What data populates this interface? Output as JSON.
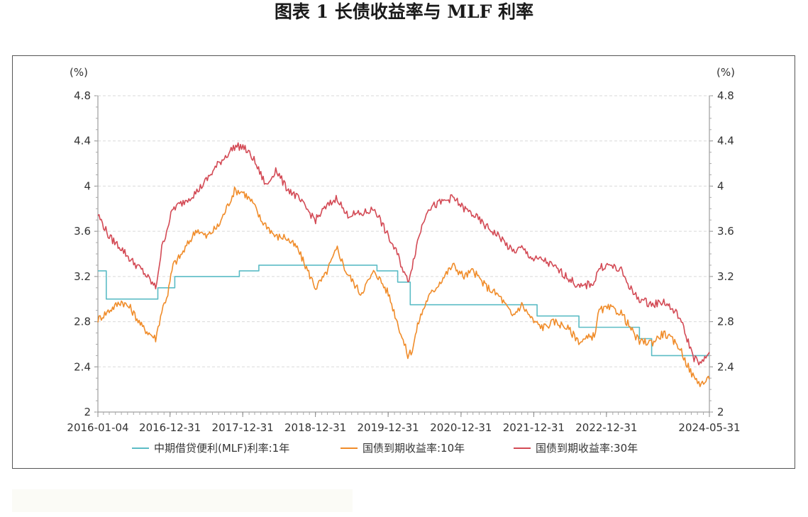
{
  "title": "图表 1  长债收益率与 MLF 利率",
  "chart_data": {
    "type": "line",
    "title": "图表 1  长债收益率与 MLF 利率",
    "ylabel_left": "(%)",
    "ylabel_right": "(%)",
    "ylim": [
      2,
      4.8
    ],
    "yticks": [
      2,
      2.4,
      2.8,
      3.2,
      3.6,
      4,
      4.4,
      4.8
    ],
    "ytick_labels": [
      "2",
      "2.4",
      "2.8",
      "3.2",
      "3.6",
      "4",
      "4.4",
      "4.8"
    ],
    "xlim": [
      "2016-01-04",
      "2024-05-31"
    ],
    "xticks": [
      "2016-01-04",
      "2016-12-31",
      "2017-12-31",
      "2018-12-31",
      "2019-12-31",
      "2020-12-31",
      "2021-12-31",
      "2022-12-31",
      "2024-05-31"
    ],
    "grid": "horizontal-dashed",
    "legend": "bottom",
    "series": [
      {
        "name": "中期借贷便利(MLF)利率:1年",
        "color": "#5bbcc5",
        "x": [
          "2016-01-04",
          "2016-02-15",
          "2016-02-15",
          "2016-10-31",
          "2016-10-31",
          "2017-01-24",
          "2017-01-24",
          "2017-03-16",
          "2017-03-16",
          "2017-12-14",
          "2017-12-14",
          "2018-03-22",
          "2018-03-22",
          "2019-11-05",
          "2019-11-05",
          "2020-02-17",
          "2020-02-17",
          "2020-04-20",
          "2020-04-20",
          "2022-01-17",
          "2022-01-17",
          "2022-08-15",
          "2022-08-15",
          "2023-06-15",
          "2023-06-15",
          "2023-08-15",
          "2023-08-15",
          "2024-05-31"
        ],
        "values": [
          3.25,
          3.25,
          3.0,
          3.0,
          3.1,
          3.1,
          3.2,
          3.2,
          3.2,
          3.2,
          3.25,
          3.25,
          3.3,
          3.3,
          3.25,
          3.25,
          3.15,
          3.15,
          2.95,
          2.95,
          2.85,
          2.85,
          2.75,
          2.75,
          2.65,
          2.65,
          2.5,
          2.5
        ]
      },
      {
        "name": "国债到期收益率:10年",
        "color": "#f08c2a",
        "x": [
          "2016-01-04",
          "2016-03-01",
          "2016-05-01",
          "2016-06-15",
          "2016-08-15",
          "2016-10-20",
          "2016-11-20",
          "2016-12-20",
          "2017-01-15",
          "2017-03-01",
          "2017-05-15",
          "2017-07-01",
          "2017-09-01",
          "2017-11-20",
          "2018-01-01",
          "2018-02-20",
          "2018-04-01",
          "2018-05-01",
          "2018-06-15",
          "2018-08-01",
          "2018-10-01",
          "2019-01-01",
          "2019-02-15",
          "2019-04-20",
          "2019-06-01",
          "2019-08-15",
          "2019-10-25",
          "2020-01-01",
          "2020-02-15",
          "2020-04-08",
          "2020-04-30",
          "2020-06-01",
          "2020-07-15",
          "2020-09-15",
          "2020-11-20",
          "2021-01-15",
          "2021-03-01",
          "2021-05-01",
          "2021-07-15",
          "2021-09-15",
          "2021-11-01",
          "2021-12-31",
          "2022-02-15",
          "2022-04-15",
          "2022-06-15",
          "2022-08-20",
          "2022-10-31",
          "2022-11-25",
          "2023-01-15",
          "2023-03-15",
          "2023-05-15",
          "2023-06-15",
          "2023-08-20",
          "2023-10-15",
          "2023-12-31",
          "2024-02-15",
          "2024-03-15",
          "2024-04-20",
          "2024-05-31"
        ],
        "values": [
          2.82,
          2.9,
          2.98,
          2.92,
          2.75,
          2.65,
          2.9,
          3.05,
          3.3,
          3.4,
          3.62,
          3.55,
          3.65,
          3.96,
          3.95,
          3.85,
          3.7,
          3.65,
          3.55,
          3.55,
          3.45,
          3.1,
          3.2,
          3.45,
          3.25,
          3.05,
          3.25,
          3.05,
          2.8,
          2.5,
          2.55,
          2.8,
          3.0,
          3.15,
          3.3,
          3.2,
          3.25,
          3.12,
          3.02,
          2.85,
          2.95,
          2.8,
          2.75,
          2.8,
          2.75,
          2.62,
          2.68,
          2.9,
          2.92,
          2.88,
          2.7,
          2.62,
          2.62,
          2.7,
          2.58,
          2.4,
          2.3,
          2.25,
          2.29
        ]
      },
      {
        "name": "国债到期收益率:30年",
        "color": "#d34a55",
        "x": [
          "2016-01-04",
          "2016-03-01",
          "2016-05-01",
          "2016-06-15",
          "2016-08-15",
          "2016-10-20",
          "2016-11-20",
          "2016-12-20",
          "2017-01-15",
          "2017-03-01",
          "2017-05-15",
          "2017-07-01",
          "2017-09-01",
          "2017-11-20",
          "2018-01-01",
          "2018-02-20",
          "2018-04-01",
          "2018-05-01",
          "2018-06-15",
          "2018-08-01",
          "2018-10-01",
          "2019-01-01",
          "2019-02-15",
          "2019-04-20",
          "2019-06-01",
          "2019-08-15",
          "2019-10-25",
          "2020-01-01",
          "2020-02-15",
          "2020-04-08",
          "2020-04-30",
          "2020-06-01",
          "2020-07-15",
          "2020-09-15",
          "2020-11-20",
          "2021-01-15",
          "2021-03-01",
          "2021-05-01",
          "2021-07-15",
          "2021-09-15",
          "2021-11-01",
          "2021-12-31",
          "2022-02-15",
          "2022-04-15",
          "2022-06-15",
          "2022-08-20",
          "2022-10-31",
          "2022-11-25",
          "2023-01-15",
          "2023-03-15",
          "2023-05-15",
          "2023-06-15",
          "2023-08-20",
          "2023-10-15",
          "2023-12-31",
          "2024-02-15",
          "2024-03-15",
          "2024-04-20",
          "2024-05-31"
        ],
        "values": [
          3.75,
          3.55,
          3.45,
          3.35,
          3.25,
          3.1,
          3.45,
          3.65,
          3.8,
          3.85,
          3.95,
          4.05,
          4.2,
          4.35,
          4.35,
          4.25,
          4.1,
          4.0,
          4.15,
          4.0,
          3.9,
          3.7,
          3.8,
          3.9,
          3.75,
          3.75,
          3.8,
          3.55,
          3.4,
          3.15,
          3.3,
          3.55,
          3.8,
          3.85,
          3.9,
          3.8,
          3.75,
          3.65,
          3.55,
          3.42,
          3.45,
          3.35,
          3.35,
          3.28,
          3.2,
          3.1,
          3.15,
          3.28,
          3.3,
          3.25,
          3.05,
          3.0,
          2.95,
          2.98,
          2.85,
          2.62,
          2.48,
          2.42,
          2.53
        ]
      }
    ]
  }
}
